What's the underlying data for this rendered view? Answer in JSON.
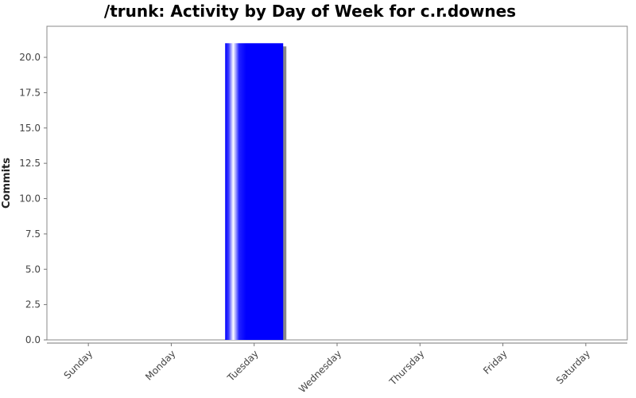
{
  "chart_data": {
    "type": "bar",
    "title": "/trunk: Activity by Day of Week for c.r.downes",
    "xlabel": "",
    "ylabel": "Commits",
    "categories": [
      "Sunday",
      "Monday",
      "Tuesday",
      "Wednesday",
      "Thursday",
      "Friday",
      "Saturday"
    ],
    "series": [
      {
        "values": [
          0,
          0,
          21,
          0,
          0,
          0,
          0
        ]
      }
    ],
    "ylim": [
      0,
      22.2
    ],
    "yticks": [
      "0.0",
      "2.5",
      "5.0",
      "7.5",
      "10.0",
      "12.5",
      "15.0",
      "17.5",
      "20.0"
    ],
    "grid": false,
    "legend": "none",
    "bar_color": "#0000ff",
    "shadow_color": "#888888"
  }
}
